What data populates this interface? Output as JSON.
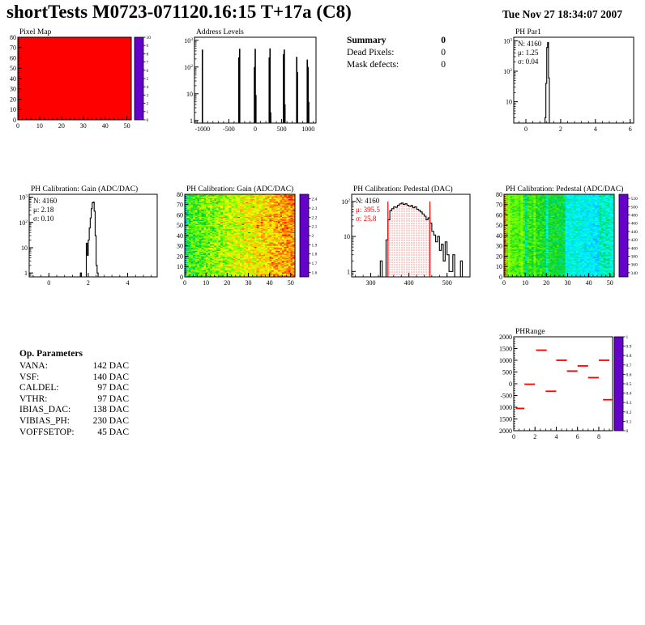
{
  "header": {
    "title": "shortTests M0723-071120.16:15 T+17a (C8)",
    "date": "Tue Nov 27 18:34:07 2007"
  },
  "summary": {
    "title": "Summary",
    "value": "0",
    "rows": [
      {
        "label": "Dead Pixels:",
        "value": "0"
      },
      {
        "label": "Mask defects:",
        "value": "0"
      }
    ]
  },
  "op_parameters": {
    "title": "Op. Parameters",
    "rows": [
      {
        "label": "VANA:",
        "value": "142 DAC"
      },
      {
        "label": "VSF:",
        "value": "140 DAC"
      },
      {
        "label": "CALDEL:",
        "value": "97 DAC"
      },
      {
        "label": "VTHR:",
        "value": "97 DAC"
      },
      {
        "label": "IBIAS_DAC:",
        "value": "138 DAC"
      },
      {
        "label": "VIBIAS_PH:",
        "value": "230 DAC"
      },
      {
        "label": "VOFFSETOP:",
        "value": "45 DAC"
      }
    ]
  },
  "colors": {
    "ink": "#000000",
    "accent_red": "#ff0000",
    "background": "#ffffff"
  },
  "chart_data": [
    {
      "id": "pixel_map",
      "type": "heatmap",
      "title": "Pixel Map",
      "xlim": [
        0,
        52
      ],
      "ylim": [
        0,
        80
      ],
      "x_ticks": [
        0,
        10,
        20,
        30,
        40,
        50
      ],
      "y_ticks": [
        0,
        10,
        20,
        30,
        40,
        50,
        60,
        70,
        80
      ],
      "uniform_value": 10,
      "colorbar": {
        "min": 0,
        "max": 10,
        "ticks": [
          0,
          1,
          2,
          3,
          4,
          5,
          6,
          7,
          8,
          9,
          10
        ]
      },
      "note": "all pixels at maximum - solid red 52x80 map"
    },
    {
      "id": "address_levels",
      "type": "spikes",
      "title": "Address Levels",
      "xlim": [
        -1150,
        1150
      ],
      "x_ticks": [
        -1000,
        -500,
        0,
        500,
        1000
      ],
      "ylog": [
        0.8,
        1300
      ],
      "y_tick_labels": [
        "1",
        "10",
        "10^2",
        "10^3"
      ],
      "spikes": [
        [
          -1000,
          450
        ],
        [
          -310,
          230
        ],
        [
          -295,
          480
        ],
        [
          -15,
          100
        ],
        [
          0,
          480
        ],
        [
          12,
          9
        ],
        [
          265,
          230
        ],
        [
          280,
          500
        ],
        [
          292,
          2
        ],
        [
          535,
          300
        ],
        [
          550,
          450
        ],
        [
          562,
          4
        ],
        [
          785,
          240
        ],
        [
          798,
          65
        ],
        [
          985,
          190
        ],
        [
          1000,
          100
        ],
        [
          1012,
          5
        ]
      ]
    },
    {
      "id": "ph_par1",
      "type": "hist",
      "title": "PH Par1",
      "stats": {
        "N": "4160",
        "mu": "1.25",
        "sigma": "0.04"
      },
      "xlim": [
        -0.7,
        6.2
      ],
      "x_ticks": [
        0,
        2,
        4,
        6
      ],
      "x_minor_step": 0.4,
      "ylog": [
        2,
        1300
      ],
      "y_tick_labels": [
        "10",
        "10^2",
        "10^3"
      ],
      "bin_width": 0.05,
      "bins": [
        [
          1.05,
          2
        ],
        [
          1.1,
          3
        ],
        [
          1.15,
          40
        ],
        [
          1.2,
          600
        ],
        [
          1.25,
          880
        ],
        [
          1.3,
          60
        ],
        [
          1.35,
          2
        ]
      ]
    },
    {
      "id": "gain_hist",
      "type": "hist",
      "title": "PH Calibration: Gain (ADC/DAC)",
      "stats": {
        "N": "4160",
        "mu": "2.18",
        "sigma": "0.10"
      },
      "xlim": [
        -1,
        5.5
      ],
      "x_ticks": [
        0,
        2,
        4
      ],
      "x_minor_step": 0.4,
      "ylog": [
        0.7,
        1300
      ],
      "y_tick_labels": [
        "1",
        "10",
        "10^2",
        "10^3"
      ],
      "bin_width": 0.05,
      "bins": [
        [
          1.6,
          1
        ],
        [
          1.9,
          15
        ],
        [
          1.95,
          5
        ],
        [
          2.0,
          20
        ],
        [
          2.05,
          60
        ],
        [
          2.1,
          150
        ],
        [
          2.15,
          350
        ],
        [
          2.2,
          600
        ],
        [
          2.25,
          640
        ],
        [
          2.3,
          280
        ],
        [
          2.35,
          30
        ],
        [
          2.4,
          2
        ],
        [
          2.45,
          1
        ]
      ]
    },
    {
      "id": "gain_map",
      "type": "heatmap",
      "title": "PH Calibration: Gain (ADC/DAC)",
      "xlim": [
        0,
        52
      ],
      "ylim": [
        0,
        80
      ],
      "x_ticks": [
        0,
        10,
        20,
        30,
        40,
        50
      ],
      "y_ticks": [
        0,
        10,
        20,
        30,
        40,
        50,
        60,
        70,
        80
      ],
      "colorbar": {
        "min": 1.55,
        "max": 2.45,
        "ticks": [
          1.6,
          1.7,
          1.8,
          1.9,
          2,
          2.1,
          2.2,
          2.3,
          2.4
        ]
      },
      "noise": {
        "base": 2.04,
        "x_gradient": 0.3,
        "jitter": 0.22,
        "hot_fraction": 0.05,
        "hot_boost": 0.12,
        "first_col_offset": -0.18,
        "seed": 12345
      },
      "note": "gain ~1.9 (green, left edge) rising to ~2.35 (orange/red, right)"
    },
    {
      "id": "pedestal_hist",
      "type": "hist",
      "title": "PH Calibration: Pedestal (DAC)",
      "stats": {
        "N": "4160",
        "mu": "395.5",
        "sigma": "25.8"
      },
      "stats_colors": {
        "N": "#000000",
        "mu": "#ff0000",
        "sigma": "#ff0000"
      },
      "xlim": [
        250,
        560
      ],
      "x_ticks": [
        300,
        400,
        500
      ],
      "x_minor_step": 20,
      "ylog": [
        0.7,
        160
      ],
      "y_tick_labels": [
        "1",
        "10",
        "10^2"
      ],
      "bin_width": 5,
      "bins": [
        [
          325,
          2
        ],
        [
          340,
          8
        ],
        [
          345,
          30
        ],
        [
          350,
          55
        ],
        [
          355,
          62
        ],
        [
          360,
          70
        ],
        [
          365,
          68
        ],
        [
          370,
          78
        ],
        [
          375,
          85
        ],
        [
          380,
          90
        ],
        [
          385,
          82
        ],
        [
          390,
          86
        ],
        [
          395,
          78
        ],
        [
          400,
          72
        ],
        [
          405,
          76
        ],
        [
          410,
          66
        ],
        [
          415,
          70
        ],
        [
          420,
          60
        ],
        [
          425,
          56
        ],
        [
          430,
          50
        ],
        [
          435,
          44
        ],
        [
          440,
          38
        ],
        [
          445,
          30
        ],
        [
          450,
          34
        ],
        [
          455,
          24
        ],
        [
          460,
          14
        ],
        [
          465,
          11
        ],
        [
          470,
          7
        ],
        [
          475,
          10
        ],
        [
          480,
          4
        ],
        [
          485,
          6
        ],
        [
          490,
          2
        ],
        [
          495,
          7
        ],
        [
          500,
          3
        ],
        [
          505,
          1
        ],
        [
          510,
          1
        ],
        [
          515,
          3
        ],
        [
          535,
          2
        ]
      ],
      "range_lines": [
        345,
        455
      ],
      "hatch_color": "#ff0000"
    },
    {
      "id": "pedestal_map",
      "type": "heatmap",
      "title": "PH Calibration: Pedestal (ADC/DAC)",
      "xlim": [
        0,
        52
      ],
      "ylim": [
        0,
        80
      ],
      "x_ticks": [
        0,
        10,
        20,
        30,
        40,
        50
      ],
      "y_ticks": [
        0,
        10,
        20,
        30,
        40,
        50,
        60,
        70,
        80
      ],
      "colorbar": {
        "min": 330,
        "max": 530,
        "ticks": [
          340,
          360,
          380,
          400,
          420,
          440,
          460,
          480,
          500,
          520
        ]
      },
      "noise": {
        "base": 452,
        "x_gradient": -42,
        "jitter": 26,
        "band_cols": [
          10,
          20,
          29,
          30
        ],
        "band_offset": -22,
        "blue_region": [
          31,
          44
        ],
        "blue_offset": -18,
        "first_col_offset": 55,
        "warm_cols": [
          2,
          8,
          14
        ],
        "warm_offset": 12,
        "seed": 777
      },
      "note": "pedestal ~455 (green, left) falling to ~390 (blue/cyan, right) with vertical cyan bands"
    },
    {
      "id": "ph_range",
      "type": "segments",
      "title": "PHRange",
      "xlim": [
        0,
        9.3
      ],
      "x_ticks": [
        0,
        2,
        4,
        6,
        8
      ],
      "x_minor_step": 0.5,
      "ylim": [
        -2000,
        2000
      ],
      "y_ticks": [
        [
          2000,
          "2000"
        ],
        [
          1500,
          "1500"
        ],
        [
          1000,
          "1000"
        ],
        [
          500,
          "500"
        ],
        [
          0,
          "0"
        ],
        [
          -500,
          "-500"
        ],
        [
          -1000,
          "1000"
        ],
        [
          -1500,
          "1500"
        ],
        [
          -2000,
          "2000"
        ]
      ],
      "segments": [
        [
          0.2,
          1.0,
          -1050
        ],
        [
          1.0,
          2.0,
          -20
        ],
        [
          2.1,
          3.1,
          1430
        ],
        [
          3.0,
          4.0,
          -320
        ],
        [
          4.0,
          5.0,
          1000
        ],
        [
          5.0,
          6.0,
          540
        ],
        [
          6.0,
          7.0,
          760
        ],
        [
          7.0,
          8.0,
          260
        ],
        [
          8.0,
          9.0,
          1000
        ],
        [
          8.4,
          9.3,
          -680
        ]
      ],
      "segment_color": "#ff0000",
      "colorbar": {
        "min": 0,
        "max": 1,
        "ticks": [
          0,
          0.1,
          0.2,
          0.3,
          0.4,
          0.5,
          0.6,
          0.7,
          0.8,
          0.9,
          1
        ]
      }
    }
  ]
}
